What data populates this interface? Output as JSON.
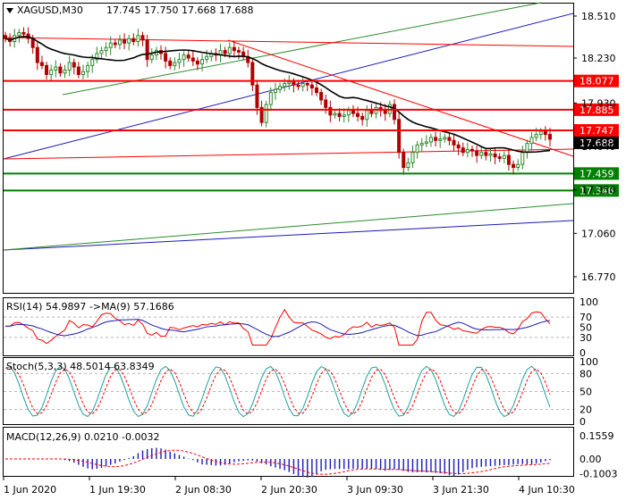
{
  "colors": {
    "bull": "#2f8a2f",
    "bear": "#b00000",
    "ma": "#000000",
    "res_line": "#ff0000",
    "sup_line": "#008000",
    "chan_blue": "#1a1ab8",
    "chan_green": "#2e8b2e",
    "rsi": "#ff0000",
    "rsi_ma": "#1a1ab8",
    "stoch_main": "#20a0a0",
    "stoch_signal": "#ff0000",
    "macd_hist": "#1a1ab8",
    "macd_signal": "#ff0000",
    "grid_dash": "#b8b8b8",
    "frame": "#000000"
  },
  "header": {
    "symbol_tf": "XAGUSD,M30",
    "ohlc": "17.745 17.750 17.668 17.688"
  },
  "chart_data": [
    {
      "type": "candlestick",
      "panel": "main",
      "y_ticks": [
        {
          "value": 18.51,
          "label": "18.510"
        },
        {
          "value": 18.23,
          "label": "18.230"
        },
        {
          "value": 17.93,
          "label": "17.930"
        },
        {
          "value": 17.64,
          "label": "17.640"
        },
        {
          "value": 17.35,
          "label": "17.350"
        },
        {
          "value": 17.06,
          "label": "17.060"
        },
        {
          "value": 16.77,
          "label": "16.770"
        }
      ],
      "levels": [
        {
          "value": 18.077,
          "label": "18.077",
          "role": "resistance"
        },
        {
          "value": 17.885,
          "label": "17.885",
          "role": "resistance"
        },
        {
          "value": 17.747,
          "label": "17.747",
          "role": "resistance"
        },
        {
          "value": 17.459,
          "label": "17.459",
          "role": "support"
        },
        {
          "value": 17.346,
          "label": "17.346",
          "role": "support"
        }
      ],
      "current_price": {
        "value": 17.688,
        "label": "17.688"
      },
      "x_labels": [
        "1 Jun 2020",
        "1 Jun 19:30",
        "2 Jun 08:30",
        "2 Jun 20:30",
        "3 Jun 09:30",
        "3 Jun 21:30",
        "4 Jun 10:30"
      ],
      "closes": [
        18.36,
        18.34,
        18.38,
        18.4,
        18.39,
        18.36,
        18.3,
        18.2,
        18.18,
        18.12,
        18.15,
        18.17,
        18.13,
        18.15,
        18.2,
        18.17,
        18.12,
        18.14,
        18.18,
        18.22,
        18.26,
        18.28,
        18.3,
        18.33,
        18.32,
        18.35,
        18.33,
        18.36,
        18.34,
        18.38,
        18.35,
        18.22,
        18.25,
        18.28,
        18.26,
        18.21,
        18.18,
        18.2,
        18.22,
        18.25,
        18.23,
        18.21,
        18.19,
        18.22,
        18.24,
        18.26,
        18.25,
        18.28,
        18.26,
        18.3,
        18.28,
        18.27,
        18.24,
        18.2,
        18.05,
        17.9,
        17.8,
        17.92,
        18.0,
        18.02,
        18.04,
        18.06,
        18.07,
        18.05,
        18.04,
        18.06,
        18.05,
        18.03,
        18.0,
        17.95,
        17.9,
        17.85,
        17.86,
        17.84,
        17.85,
        17.88,
        17.86,
        17.84,
        17.82,
        17.88,
        17.86,
        17.9,
        17.88,
        17.86,
        17.92,
        17.82,
        17.6,
        17.5,
        17.53,
        17.6,
        17.65,
        17.66,
        17.67,
        17.7,
        17.68,
        17.69,
        17.7,
        17.68,
        17.65,
        17.63,
        17.6,
        17.62,
        17.61,
        17.58,
        17.6,
        17.58,
        17.59,
        17.57,
        17.56,
        17.58,
        17.52,
        17.5,
        17.52,
        17.6,
        17.66,
        17.7,
        17.72,
        17.74,
        17.72,
        17.688
      ],
      "ma_period": 20
    },
    {
      "type": "line",
      "panel": "rsi",
      "label": "RSI(14) 54.9897 ->MA(9) 57.1686",
      "y_ticks": [
        {
          "value": 100,
          "label": "100"
        },
        {
          "value": 70,
          "label": "70"
        },
        {
          "value": 50,
          "label": "50"
        },
        {
          "value": 30,
          "label": "30"
        },
        {
          "value": 0,
          "label": "0"
        }
      ],
      "ylim": [
        0,
        100
      ]
    },
    {
      "type": "line",
      "panel": "stoch",
      "label": "Stoch(5,3,3) 48.5014 63.8349",
      "y_ticks": [
        {
          "value": 100,
          "label": "100"
        },
        {
          "value": 80,
          "label": "80"
        },
        {
          "value": 50,
          "label": "50"
        },
        {
          "value": 20,
          "label": "20"
        },
        {
          "value": 0,
          "label": "0"
        }
      ],
      "ylim": [
        0,
        100
      ]
    },
    {
      "type": "bar",
      "panel": "macd",
      "label": "MACD(12,26,9) 0.0210 -0.0032",
      "y_ticks": [
        {
          "value": 0.1559,
          "label": "0.1559"
        },
        {
          "value": 0.0,
          "label": "0.00"
        },
        {
          "value": -0.1003,
          "label": "-0.1003"
        }
      ]
    }
  ]
}
